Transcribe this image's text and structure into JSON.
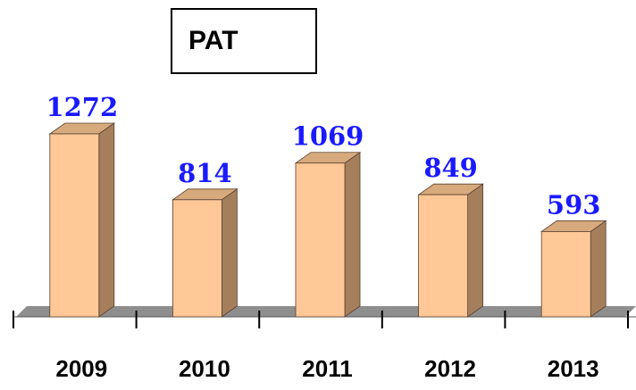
{
  "chart_data": {
    "type": "bar3d",
    "title": "PAT",
    "categories": [
      "2009",
      "2010",
      "2011",
      "2012",
      "2013"
    ],
    "values": [
      1272,
      814,
      1069,
      849,
      593
    ],
    "color": "#ffc896"
  }
}
